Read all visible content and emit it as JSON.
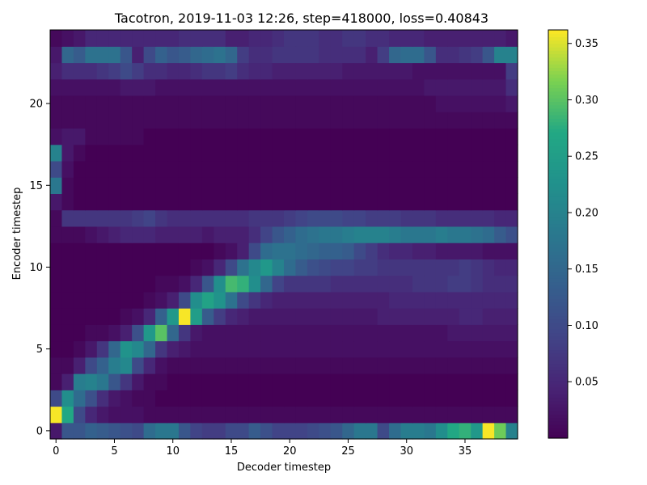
{
  "chart_data": {
    "type": "heatmap",
    "title": "Tacotron, 2019-11-03 12:26, step=418000, loss=0.40843",
    "xlabel": "Decoder timestep",
    "ylabel": "Encoder timestep",
    "x_range": [
      0,
      39
    ],
    "y_range": [
      0,
      24
    ],
    "x_ticks": [
      0,
      5,
      10,
      15,
      20,
      25,
      30,
      35
    ],
    "y_ticks": [
      0,
      5,
      10,
      15,
      20
    ],
    "colorbar": {
      "colormap": "viridis",
      "min": 0.0,
      "max": 0.362,
      "ticks": [
        "0.05",
        "0.10",
        "0.15",
        "0.20",
        "0.25",
        "0.30",
        "0.35"
      ],
      "tick_values": [
        0.05,
        0.1,
        0.15,
        0.2,
        0.25,
        0.3,
        0.35
      ]
    },
    "matrix_rows_encoder_0_to_24": [
      [
        0.03,
        0.12,
        0.12,
        0.14,
        0.13,
        0.12,
        0.11,
        0.1,
        0.16,
        0.18,
        0.18,
        0.12,
        0.09,
        0.08,
        0.08,
        0.1,
        0.1,
        0.13,
        0.11,
        0.09,
        0.09,
        0.09,
        0.1,
        0.11,
        0.12,
        0.15,
        0.18,
        0.18,
        0.1,
        0.16,
        0.19,
        0.19,
        0.18,
        0.22,
        0.27,
        0.28,
        0.24,
        0.36,
        0.31,
        0.2
      ],
      [
        0.36,
        0.27,
        0.1,
        0.05,
        0.03,
        0.02,
        0.02,
        0.02,
        0.01,
        0.01,
        0.01,
        0.01,
        0.01,
        0.01,
        0.01,
        0.01,
        0.01,
        0.01,
        0.01,
        0.01,
        0.01,
        0.01,
        0.01,
        0.01,
        0.01,
        0.01,
        0.01,
        0.01,
        0.01,
        0.01,
        0.01,
        0.01,
        0.01,
        0.01,
        0.01,
        0.01,
        0.01,
        0.01,
        0.01,
        0.01
      ],
      [
        0.1,
        0.22,
        0.16,
        0.11,
        0.06,
        0.03,
        0.02,
        0.01,
        0.01,
        0.0,
        0.0,
        0.0,
        0.0,
        0.0,
        0.0,
        0.0,
        0.0,
        0.0,
        0.0,
        0.0,
        0.0,
        0.0,
        0.0,
        0.0,
        0.0,
        0.0,
        0.0,
        0.0,
        0.0,
        0.0,
        0.0,
        0.0,
        0.0,
        0.0,
        0.0,
        0.0,
        0.0,
        0.0,
        0.0,
        0.0
      ],
      [
        0.01,
        0.04,
        0.19,
        0.2,
        0.18,
        0.12,
        0.07,
        0.03,
        0.01,
        0.01,
        0.0,
        0.0,
        0.0,
        0.0,
        0.0,
        0.0,
        0.0,
        0.0,
        0.0,
        0.0,
        0.0,
        0.0,
        0.0,
        0.0,
        0.0,
        0.0,
        0.0,
        0.0,
        0.0,
        0.0,
        0.0,
        0.0,
        0.0,
        0.0,
        0.0,
        0.0,
        0.0,
        0.0,
        0.0,
        0.0
      ],
      [
        0.01,
        0.01,
        0.04,
        0.1,
        0.14,
        0.19,
        0.21,
        0.1,
        0.05,
        0.02,
        0.01,
        0.01,
        0.01,
        0.01,
        0.01,
        0.01,
        0.01,
        0.01,
        0.01,
        0.01,
        0.01,
        0.01,
        0.01,
        0.01,
        0.01,
        0.01,
        0.01,
        0.01,
        0.01,
        0.01,
        0.01,
        0.01,
        0.01,
        0.01,
        0.01,
        0.01,
        0.01,
        0.01,
        0.01,
        0.01
      ],
      [
        0.0,
        0.0,
        0.01,
        0.03,
        0.07,
        0.15,
        0.23,
        0.21,
        0.15,
        0.07,
        0.04,
        0.03,
        0.02,
        0.02,
        0.02,
        0.02,
        0.02,
        0.02,
        0.02,
        0.02,
        0.02,
        0.02,
        0.02,
        0.02,
        0.02,
        0.02,
        0.02,
        0.02,
        0.02,
        0.02,
        0.02,
        0.02,
        0.02,
        0.02,
        0.02,
        0.02,
        0.02,
        0.02,
        0.02,
        0.02
      ],
      [
        0.0,
        0.0,
        0.0,
        0.01,
        0.01,
        0.02,
        0.04,
        0.11,
        0.24,
        0.3,
        0.15,
        0.07,
        0.03,
        0.02,
        0.02,
        0.02,
        0.02,
        0.02,
        0.02,
        0.02,
        0.02,
        0.02,
        0.02,
        0.02,
        0.02,
        0.02,
        0.02,
        0.02,
        0.02,
        0.02,
        0.02,
        0.02,
        0.02,
        0.02,
        0.03,
        0.03,
        0.03,
        0.03,
        0.03,
        0.03
      ],
      [
        0.0,
        0.0,
        0.0,
        0.0,
        0.0,
        0.0,
        0.01,
        0.02,
        0.05,
        0.14,
        0.24,
        0.36,
        0.25,
        0.13,
        0.08,
        0.05,
        0.04,
        0.03,
        0.03,
        0.03,
        0.03,
        0.03,
        0.03,
        0.03,
        0.03,
        0.03,
        0.03,
        0.03,
        0.04,
        0.04,
        0.04,
        0.04,
        0.04,
        0.04,
        0.04,
        0.05,
        0.05,
        0.04,
        0.04,
        0.04
      ],
      [
        0.0,
        0.0,
        0.0,
        0.0,
        0.0,
        0.0,
        0.0,
        0.0,
        0.01,
        0.02,
        0.04,
        0.1,
        0.22,
        0.26,
        0.23,
        0.17,
        0.1,
        0.07,
        0.05,
        0.04,
        0.04,
        0.04,
        0.04,
        0.04,
        0.04,
        0.04,
        0.04,
        0.04,
        0.04,
        0.05,
        0.05,
        0.05,
        0.05,
        0.05,
        0.05,
        0.05,
        0.05,
        0.05,
        0.05,
        0.05
      ],
      [
        0.0,
        0.0,
        0.0,
        0.0,
        0.0,
        0.0,
        0.0,
        0.0,
        0.0,
        0.01,
        0.01,
        0.02,
        0.05,
        0.12,
        0.22,
        0.29,
        0.28,
        0.22,
        0.15,
        0.09,
        0.07,
        0.07,
        0.07,
        0.07,
        0.06,
        0.06,
        0.06,
        0.06,
        0.06,
        0.06,
        0.06,
        0.07,
        0.07,
        0.07,
        0.08,
        0.08,
        0.07,
        0.06,
        0.06,
        0.06
      ],
      [
        0.0,
        0.0,
        0.0,
        0.0,
        0.0,
        0.0,
        0.0,
        0.0,
        0.0,
        0.0,
        0.0,
        0.0,
        0.01,
        0.02,
        0.05,
        0.1,
        0.17,
        0.21,
        0.24,
        0.2,
        0.16,
        0.13,
        0.11,
        0.1,
        0.09,
        0.09,
        0.08,
        0.08,
        0.07,
        0.07,
        0.07,
        0.07,
        0.07,
        0.07,
        0.07,
        0.08,
        0.07,
        0.06,
        0.05,
        0.05
      ],
      [
        0.0,
        0.0,
        0.0,
        0.0,
        0.0,
        0.0,
        0.0,
        0.0,
        0.0,
        0.0,
        0.0,
        0.0,
        0.0,
        0.0,
        0.01,
        0.02,
        0.04,
        0.1,
        0.16,
        0.17,
        0.17,
        0.16,
        0.15,
        0.14,
        0.14,
        0.13,
        0.1,
        0.08,
        0.06,
        0.05,
        0.05,
        0.04,
        0.04,
        0.03,
        0.03,
        0.03,
        0.03,
        0.02,
        0.02,
        0.02
      ],
      [
        0.01,
        0.01,
        0.01,
        0.02,
        0.03,
        0.04,
        0.05,
        0.05,
        0.05,
        0.04,
        0.04,
        0.04,
        0.04,
        0.03,
        0.04,
        0.04,
        0.04,
        0.06,
        0.09,
        0.12,
        0.14,
        0.16,
        0.17,
        0.18,
        0.18,
        0.19,
        0.2,
        0.2,
        0.2,
        0.19,
        0.18,
        0.18,
        0.18,
        0.19,
        0.18,
        0.18,
        0.17,
        0.16,
        0.13,
        0.11
      ],
      [
        0.01,
        0.07,
        0.07,
        0.07,
        0.07,
        0.07,
        0.07,
        0.08,
        0.09,
        0.07,
        0.06,
        0.06,
        0.06,
        0.06,
        0.06,
        0.06,
        0.06,
        0.07,
        0.07,
        0.07,
        0.08,
        0.09,
        0.1,
        0.1,
        0.1,
        0.09,
        0.09,
        0.08,
        0.08,
        0.08,
        0.07,
        0.07,
        0.07,
        0.06,
        0.06,
        0.06,
        0.06,
        0.06,
        0.05,
        0.05
      ],
      [
        0.03,
        0.01,
        0.0,
        0.0,
        0.0,
        0.0,
        0.0,
        0.0,
        0.0,
        0.0,
        0.0,
        0.0,
        0.0,
        0.0,
        0.0,
        0.0,
        0.0,
        0.0,
        0.0,
        0.0,
        0.0,
        0.0,
        0.0,
        0.0,
        0.0,
        0.0,
        0.0,
        0.0,
        0.0,
        0.0,
        0.0,
        0.0,
        0.0,
        0.0,
        0.0,
        0.0,
        0.0,
        0.0,
        0.0,
        0.0
      ],
      [
        0.18,
        0.01,
        0.0,
        0.0,
        0.0,
        0.0,
        0.0,
        0.0,
        0.0,
        0.0,
        0.0,
        0.0,
        0.0,
        0.0,
        0.0,
        0.0,
        0.0,
        0.0,
        0.0,
        0.0,
        0.0,
        0.0,
        0.0,
        0.0,
        0.0,
        0.0,
        0.0,
        0.0,
        0.0,
        0.0,
        0.0,
        0.0,
        0.0,
        0.0,
        0.0,
        0.0,
        0.0,
        0.0,
        0.0,
        0.0
      ],
      [
        0.1,
        0.02,
        0.0,
        0.0,
        0.0,
        0.0,
        0.0,
        0.0,
        0.0,
        0.0,
        0.0,
        0.0,
        0.0,
        0.0,
        0.0,
        0.0,
        0.0,
        0.0,
        0.0,
        0.0,
        0.0,
        0.0,
        0.0,
        0.0,
        0.0,
        0.0,
        0.0,
        0.0,
        0.0,
        0.0,
        0.0,
        0.0,
        0.0,
        0.0,
        0.0,
        0.0,
        0.0,
        0.0,
        0.0,
        0.0
      ],
      [
        0.2,
        0.03,
        0.01,
        0.0,
        0.0,
        0.0,
        0.0,
        0.0,
        0.0,
        0.0,
        0.0,
        0.0,
        0.0,
        0.0,
        0.0,
        0.0,
        0.0,
        0.0,
        0.0,
        0.0,
        0.0,
        0.0,
        0.0,
        0.0,
        0.0,
        0.0,
        0.0,
        0.0,
        0.0,
        0.0,
        0.0,
        0.0,
        0.0,
        0.0,
        0.0,
        0.0,
        0.0,
        0.0,
        0.0,
        0.0
      ],
      [
        0.02,
        0.03,
        0.03,
        0.01,
        0.01,
        0.01,
        0.01,
        0.01,
        0.0,
        0.0,
        0.0,
        0.0,
        0.0,
        0.0,
        0.0,
        0.0,
        0.0,
        0.0,
        0.0,
        0.0,
        0.0,
        0.0,
        0.0,
        0.0,
        0.0,
        0.0,
        0.0,
        0.0,
        0.0,
        0.0,
        0.0,
        0.0,
        0.0,
        0.0,
        0.0,
        0.0,
        0.0,
        0.0,
        0.0,
        0.0
      ],
      [
        0.01,
        0.01,
        0.01,
        0.01,
        0.01,
        0.01,
        0.01,
        0.01,
        0.01,
        0.01,
        0.01,
        0.01,
        0.01,
        0.01,
        0.01,
        0.01,
        0.01,
        0.01,
        0.01,
        0.01,
        0.01,
        0.01,
        0.01,
        0.01,
        0.01,
        0.01,
        0.01,
        0.01,
        0.01,
        0.01,
        0.01,
        0.01,
        0.01,
        0.01,
        0.01,
        0.01,
        0.01,
        0.01,
        0.01,
        0.01
      ],
      [
        0.01,
        0.01,
        0.01,
        0.01,
        0.01,
        0.01,
        0.01,
        0.01,
        0.01,
        0.01,
        0.01,
        0.01,
        0.01,
        0.01,
        0.01,
        0.01,
        0.01,
        0.01,
        0.01,
        0.01,
        0.01,
        0.01,
        0.01,
        0.01,
        0.01,
        0.01,
        0.01,
        0.01,
        0.01,
        0.01,
        0.01,
        0.01,
        0.01,
        0.02,
        0.02,
        0.02,
        0.02,
        0.02,
        0.02,
        0.03
      ],
      [
        0.02,
        0.02,
        0.02,
        0.02,
        0.02,
        0.02,
        0.03,
        0.03,
        0.03,
        0.02,
        0.02,
        0.02,
        0.02,
        0.02,
        0.02,
        0.02,
        0.02,
        0.02,
        0.02,
        0.02,
        0.02,
        0.02,
        0.02,
        0.02,
        0.02,
        0.02,
        0.02,
        0.02,
        0.02,
        0.02,
        0.02,
        0.02,
        0.03,
        0.03,
        0.03,
        0.03,
        0.03,
        0.03,
        0.03,
        0.06
      ],
      [
        0.04,
        0.06,
        0.06,
        0.06,
        0.07,
        0.08,
        0.1,
        0.08,
        0.06,
        0.06,
        0.05,
        0.05,
        0.06,
        0.07,
        0.07,
        0.08,
        0.06,
        0.05,
        0.05,
        0.04,
        0.04,
        0.04,
        0.04,
        0.04,
        0.04,
        0.03,
        0.03,
        0.03,
        0.03,
        0.03,
        0.03,
        0.02,
        0.02,
        0.02,
        0.02,
        0.02,
        0.02,
        0.02,
        0.02,
        0.08
      ],
      [
        0.03,
        0.15,
        0.13,
        0.17,
        0.17,
        0.17,
        0.12,
        0.04,
        0.1,
        0.14,
        0.12,
        0.13,
        0.15,
        0.16,
        0.17,
        0.15,
        0.08,
        0.06,
        0.06,
        0.07,
        0.07,
        0.07,
        0.07,
        0.06,
        0.06,
        0.06,
        0.06,
        0.04,
        0.08,
        0.15,
        0.16,
        0.16,
        0.12,
        0.06,
        0.06,
        0.07,
        0.08,
        0.12,
        0.2,
        0.2
      ],
      [
        0.01,
        0.02,
        0.03,
        0.05,
        0.05,
        0.05,
        0.05,
        0.05,
        0.05,
        0.05,
        0.05,
        0.06,
        0.06,
        0.06,
        0.06,
        0.04,
        0.04,
        0.05,
        0.05,
        0.06,
        0.07,
        0.07,
        0.07,
        0.06,
        0.06,
        0.07,
        0.07,
        0.06,
        0.06,
        0.05,
        0.05,
        0.05,
        0.04,
        0.04,
        0.04,
        0.04,
        0.04,
        0.04,
        0.04,
        0.03
      ]
    ]
  }
}
